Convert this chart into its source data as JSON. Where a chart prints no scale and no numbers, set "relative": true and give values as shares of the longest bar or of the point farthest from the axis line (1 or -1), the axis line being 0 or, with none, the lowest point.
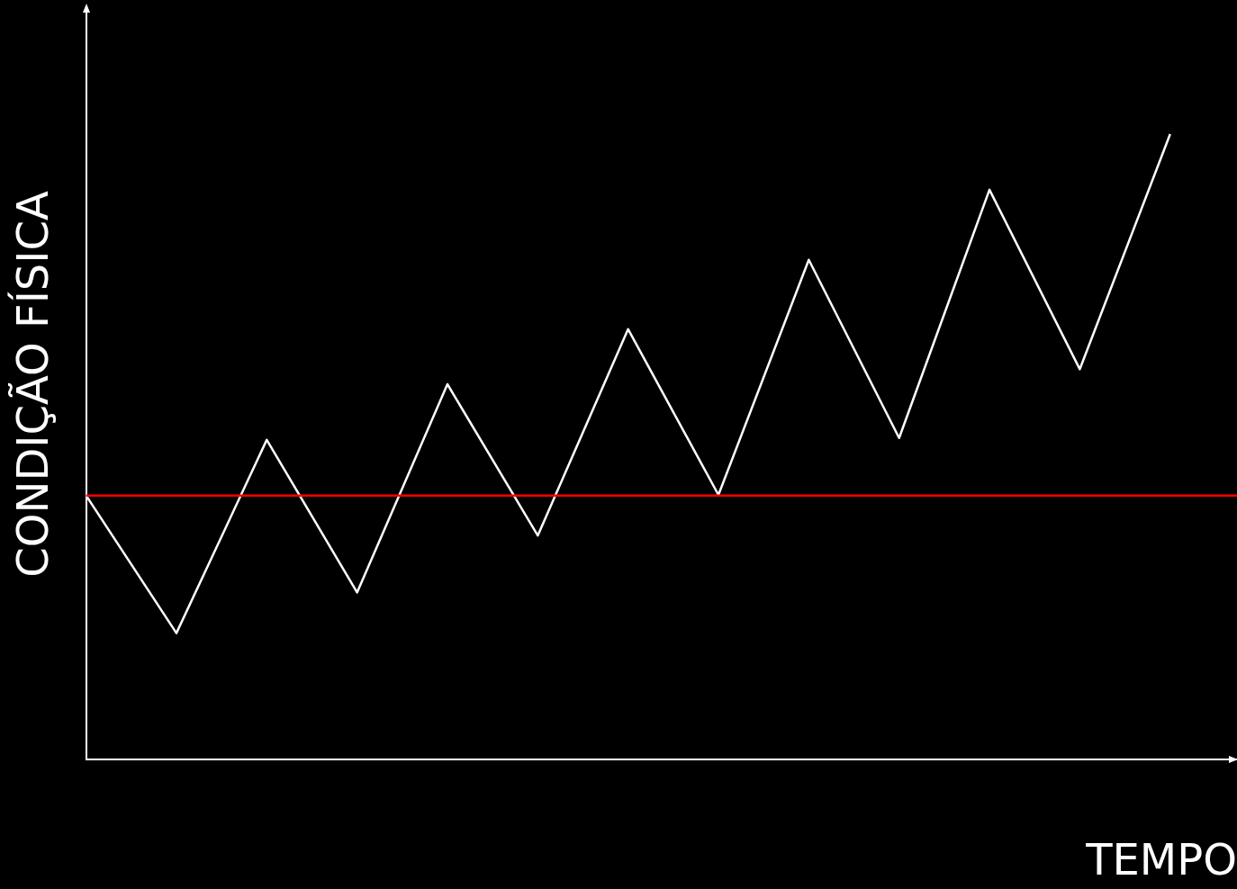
{
  "chart_data": {
    "type": "line",
    "relative": true,
    "xlabel": "TEMPO",
    "ylabel": "CONDIÇÃO FÍSICA",
    "categories": [
      null,
      null,
      null,
      null,
      null,
      null,
      null,
      null,
      null,
      null,
      null,
      null,
      null
    ],
    "series": [
      {
        "color": "#ffffff",
        "values": [
          0.422,
          0.202,
          0.511,
          0.267,
          0.6,
          0.358,
          0.688,
          0.423,
          0.799,
          0.514,
          0.911,
          0.624,
          1
        ]
      }
    ],
    "ref_lines": [
      {
        "axis": "y",
        "value": 0.422,
        "color": "#ff0000"
      }
    ],
    "grid": false,
    "legend": false,
    "marker": "none",
    "line_style": "solid"
  }
}
